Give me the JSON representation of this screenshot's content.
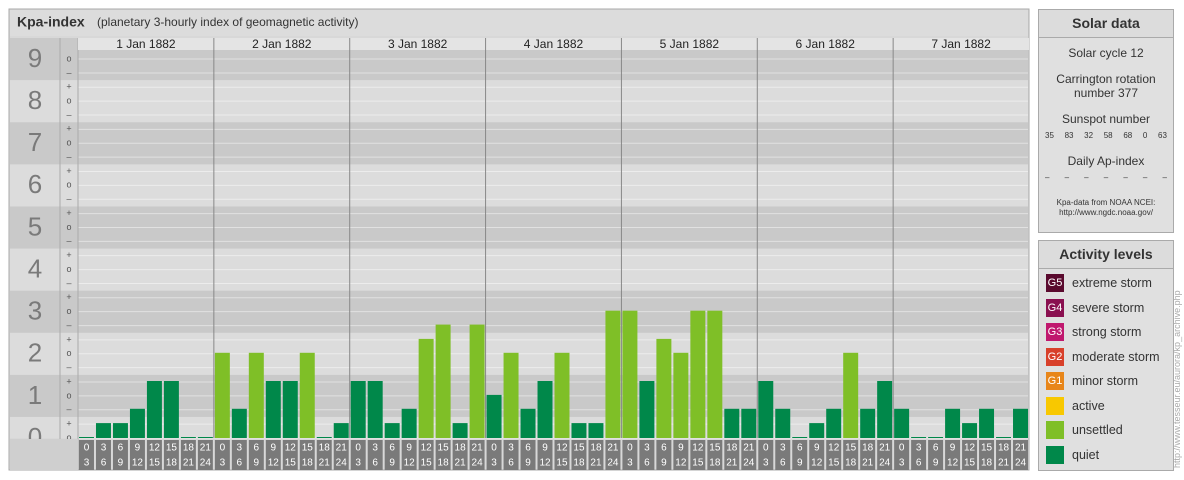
{
  "chart_data": {
    "type": "bar",
    "title": "Kpa-index",
    "subtitle": "(planetary 3-hourly index of geomagnetic activity)",
    "ylim": [
      0,
      9.5
    ],
    "yticks": [
      0,
      1,
      2,
      3,
      4,
      5,
      6,
      7,
      8,
      9
    ],
    "minor_ticks": [
      {
        "value": 0,
        "label": "o"
      },
      {
        "value": 0.33,
        "label": "+"
      },
      {
        "value": 0.67,
        "label": "–"
      },
      {
        "value": 1,
        "label": "o"
      },
      {
        "value": 1.33,
        "label": "+"
      },
      {
        "value": 1.67,
        "label": "–"
      },
      {
        "value": 2,
        "label": "o"
      },
      {
        "value": 2.33,
        "label": "+"
      },
      {
        "value": 2.67,
        "label": "–"
      },
      {
        "value": 3,
        "label": "o"
      },
      {
        "value": 3.33,
        "label": "+"
      },
      {
        "value": 3.67,
        "label": "–"
      },
      {
        "value": 4,
        "label": "o"
      },
      {
        "value": 4.33,
        "label": "+"
      },
      {
        "value": 4.67,
        "label": "–"
      },
      {
        "value": 5,
        "label": "o"
      },
      {
        "value": 5.33,
        "label": "+"
      },
      {
        "value": 5.67,
        "label": "–"
      },
      {
        "value": 6,
        "label": "o"
      },
      {
        "value": 6.33,
        "label": "+"
      },
      {
        "value": 6.67,
        "label": "–"
      },
      {
        "value": 7,
        "label": "o"
      },
      {
        "value": 7.33,
        "label": "+"
      },
      {
        "value": 7.67,
        "label": "–"
      },
      {
        "value": 8,
        "label": "o"
      },
      {
        "value": 8.33,
        "label": "+"
      },
      {
        "value": 8.67,
        "label": "–"
      },
      {
        "value": 9,
        "label": "o"
      }
    ],
    "bar_labels": [
      [
        0,
        3
      ],
      [
        3,
        6
      ],
      [
        6,
        9
      ],
      [
        9,
        12
      ],
      [
        12,
        15
      ],
      [
        15,
        18
      ],
      [
        18,
        21
      ],
      [
        21,
        24
      ]
    ],
    "series": [
      {
        "name": "1 Jan 1882",
        "values": [
          0,
          0.33,
          0.33,
          0.67,
          1.33,
          1.33,
          0,
          0
        ],
        "colors": [
          "#00884a",
          "#00884a",
          "#00884a",
          "#00884a",
          "#00884a",
          "#00884a",
          "#00884a",
          "#00884a"
        ]
      },
      {
        "name": "2 Jan 1882",
        "values": [
          2,
          0.67,
          2,
          1.33,
          1.33,
          2,
          0,
          0.33
        ],
        "colors": [
          "#7fbf27",
          "#00884a",
          "#7fbf27",
          "#00884a",
          "#00884a",
          "#7fbf27",
          "#00884a",
          "#00884a"
        ]
      },
      {
        "name": "3 Jan 1882",
        "values": [
          1.33,
          1.33,
          0.33,
          0.67,
          2.33,
          2.67,
          0.33,
          2.67
        ],
        "colors": [
          "#00884a",
          "#00884a",
          "#00884a",
          "#00884a",
          "#7fbf27",
          "#7fbf27",
          "#00884a",
          "#7fbf27"
        ]
      },
      {
        "name": "4 Jan 1882",
        "values": [
          1,
          2,
          0.67,
          1.33,
          2,
          0.33,
          0.33,
          3
        ],
        "colors": [
          "#00884a",
          "#7fbf27",
          "#00884a",
          "#00884a",
          "#7fbf27",
          "#00884a",
          "#00884a",
          "#7fbf27"
        ]
      },
      {
        "name": "5 Jan 1882",
        "values": [
          3,
          1.33,
          2.33,
          2,
          3,
          3,
          0.67,
          0.67
        ],
        "colors": [
          "#7fbf27",
          "#00884a",
          "#7fbf27",
          "#7fbf27",
          "#7fbf27",
          "#7fbf27",
          "#00884a",
          "#00884a"
        ]
      },
      {
        "name": "6 Jan 1882",
        "values": [
          1.33,
          0.67,
          0,
          0.33,
          0.67,
          2,
          0.67,
          1.33
        ],
        "colors": [
          "#00884a",
          "#00884a",
          "#00884a",
          "#00884a",
          "#00884a",
          "#7fbf27",
          "#00884a",
          "#00884a"
        ]
      },
      {
        "name": "7 Jan 1882",
        "values": [
          0.67,
          0,
          0,
          0.67,
          0.33,
          0.67,
          0,
          0.67
        ],
        "colors": [
          "#00884a",
          "#00884a",
          "#00884a",
          "#00884a",
          "#00884a",
          "#00884a",
          "#00884a",
          "#00884a"
        ]
      }
    ]
  },
  "solar": {
    "title": "Solar data",
    "cycle": "Solar cycle 12",
    "carrington": "Carrington rotation number 377",
    "sunspot_title": "Sunspot number",
    "sunspot_numbers": [
      35,
      83,
      32,
      58,
      68,
      0,
      63
    ],
    "ap_title": "Daily Ap-index",
    "ap_values": [
      "–",
      "–",
      "–",
      "–",
      "–",
      "–",
      "–"
    ],
    "source": "Kpa-data from NOAA NCEI:",
    "source_url": "http://www.ngdc.noaa.gov/"
  },
  "activity": {
    "title": "Activity levels",
    "levels": [
      {
        "badge": "G5",
        "name": "extreme storm",
        "color": "#5a0a2e"
      },
      {
        "badge": "G4",
        "name": "severe storm",
        "color": "#8a1050"
      },
      {
        "badge": "G3",
        "name": "strong storm",
        "color": "#c0186e"
      },
      {
        "badge": "G2",
        "name": "moderate storm",
        "color": "#d8402a"
      },
      {
        "badge": "G1",
        "name": "minor storm",
        "color": "#e8861a"
      },
      {
        "name": "active",
        "color": "#f8c800"
      },
      {
        "name": "unsettled",
        "color": "#7fbf27"
      },
      {
        "name": "quiet",
        "color": "#00884a"
      }
    ]
  },
  "watermark": "http://www.tesseur.eu/aurora/kp_archive.php"
}
